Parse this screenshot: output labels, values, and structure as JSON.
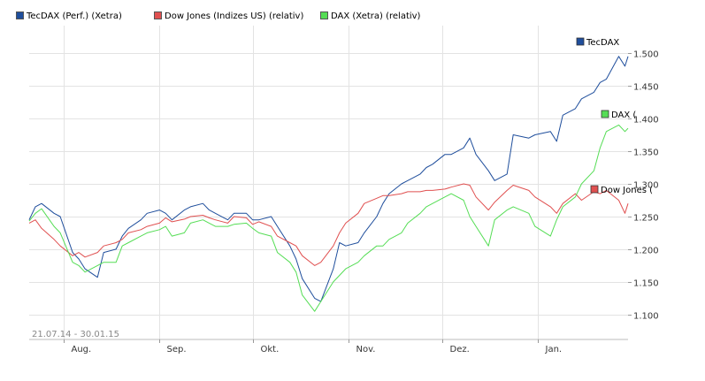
{
  "chart_data": {
    "type": "line",
    "date_range_label": "21.07.14 - 30.01.15",
    "x_ticks": [
      "Aug.",
      "Sep.",
      "Okt.",
      "Nov.",
      "Dez.",
      "Jan."
    ],
    "y_ticks": [
      "1.100",
      "1.150",
      "1.200",
      "1.250",
      "1.300",
      "1.350",
      "1.400",
      "1.450",
      "1.500"
    ],
    "y_tick_values": [
      1.1,
      1.15,
      1.2,
      1.25,
      1.3,
      1.35,
      1.4,
      1.45,
      1.5
    ],
    "ylim": [
      1.062,
      1.542
    ],
    "grid": true,
    "legend_position": "top-left",
    "x_dates": [
      "2014-07-21",
      "2014-07-23",
      "2014-07-25",
      "2014-07-29",
      "2014-07-31",
      "2014-08-04",
      "2014-08-06",
      "2014-08-08",
      "2014-08-12",
      "2014-08-14",
      "2014-08-18",
      "2014-08-20",
      "2014-08-22",
      "2014-08-26",
      "2014-08-28",
      "2014-09-01",
      "2014-09-03",
      "2014-09-05",
      "2014-09-09",
      "2014-09-11",
      "2014-09-15",
      "2014-09-17",
      "2014-09-19",
      "2014-09-23",
      "2014-09-25",
      "2014-09-29",
      "2014-10-01",
      "2014-10-03",
      "2014-10-07",
      "2014-10-09",
      "2014-10-13",
      "2014-10-15",
      "2014-10-17",
      "2014-10-21",
      "2014-10-23",
      "2014-10-27",
      "2014-10-29",
      "2014-10-31",
      "2014-11-04",
      "2014-11-06",
      "2014-11-10",
      "2014-11-12",
      "2014-11-14",
      "2014-11-18",
      "2014-11-20",
      "2014-11-24",
      "2014-11-26",
      "2014-11-28",
      "2014-12-02",
      "2014-12-04",
      "2014-12-08",
      "2014-12-10",
      "2014-12-12",
      "2014-12-16",
      "2014-12-18",
      "2014-12-22",
      "2014-12-24",
      "2014-12-29",
      "2014-12-31",
      "2015-01-05",
      "2015-01-07",
      "2015-01-09",
      "2015-01-13",
      "2015-01-15",
      "2015-01-19",
      "2015-01-21",
      "2015-01-23",
      "2015-01-27",
      "2015-01-29",
      "2015-01-30"
    ],
    "series": [
      {
        "name": "TecDAX (Perf.) (Xetra)",
        "end_label": "TecDAX",
        "color": "#1f4e9c",
        "values": [
          1.245,
          1.265,
          1.27,
          1.255,
          1.25,
          1.195,
          1.185,
          1.17,
          1.157,
          1.195,
          1.2,
          1.22,
          1.232,
          1.245,
          1.255,
          1.26,
          1.255,
          1.245,
          1.26,
          1.265,
          1.27,
          1.26,
          1.255,
          1.245,
          1.255,
          1.255,
          1.245,
          1.245,
          1.25,
          1.235,
          1.205,
          1.185,
          1.155,
          1.125,
          1.12,
          1.17,
          1.21,
          1.205,
          1.21,
          1.225,
          1.25,
          1.27,
          1.285,
          1.3,
          1.305,
          1.315,
          1.325,
          1.33,
          1.345,
          1.345,
          1.355,
          1.37,
          1.345,
          1.32,
          1.305,
          1.315,
          1.375,
          1.37,
          1.375,
          1.38,
          1.365,
          1.405,
          1.415,
          1.43,
          1.44,
          1.455,
          1.46,
          1.495,
          1.48,
          1.495
        ]
      },
      {
        "name": "Dow Jones (Indizes US) (relativ)",
        "end_label": "Dow Jones (",
        "color": "#e05050",
        "values": [
          1.24,
          1.245,
          1.232,
          1.215,
          1.205,
          1.19,
          1.195,
          1.188,
          1.195,
          1.205,
          1.21,
          1.215,
          1.225,
          1.23,
          1.235,
          1.24,
          1.248,
          1.242,
          1.246,
          1.25,
          1.252,
          1.248,
          1.245,
          1.24,
          1.25,
          1.248,
          1.238,
          1.242,
          1.235,
          1.22,
          1.21,
          1.205,
          1.19,
          1.175,
          1.18,
          1.205,
          1.225,
          1.24,
          1.255,
          1.27,
          1.278,
          1.282,
          1.282,
          1.285,
          1.288,
          1.288,
          1.29,
          1.29,
          1.292,
          1.295,
          1.3,
          1.298,
          1.28,
          1.26,
          1.272,
          1.29,
          1.298,
          1.29,
          1.28,
          1.265,
          1.255,
          1.27,
          1.285,
          1.275,
          1.288,
          1.285,
          1.29,
          1.275,
          1.255,
          1.27
        ]
      },
      {
        "name": "DAX (Xetra) (relativ)",
        "end_label": "DAX (",
        "color": "#55dd55",
        "values": [
          1.243,
          1.255,
          1.262,
          1.235,
          1.225,
          1.18,
          1.175,
          1.165,
          1.175,
          1.18,
          1.18,
          1.205,
          1.21,
          1.22,
          1.225,
          1.23,
          1.235,
          1.22,
          1.225,
          1.24,
          1.245,
          1.24,
          1.235,
          1.235,
          1.238,
          1.24,
          1.232,
          1.225,
          1.22,
          1.195,
          1.18,
          1.165,
          1.13,
          1.105,
          1.12,
          1.15,
          1.16,
          1.17,
          1.18,
          1.19,
          1.205,
          1.205,
          1.215,
          1.225,
          1.24,
          1.255,
          1.265,
          1.27,
          1.28,
          1.285,
          1.275,
          1.25,
          1.235,
          1.205,
          1.245,
          1.26,
          1.265,
          1.255,
          1.235,
          1.22,
          1.245,
          1.265,
          1.28,
          1.3,
          1.32,
          1.355,
          1.38,
          1.39,
          1.38,
          1.385
        ]
      }
    ]
  }
}
